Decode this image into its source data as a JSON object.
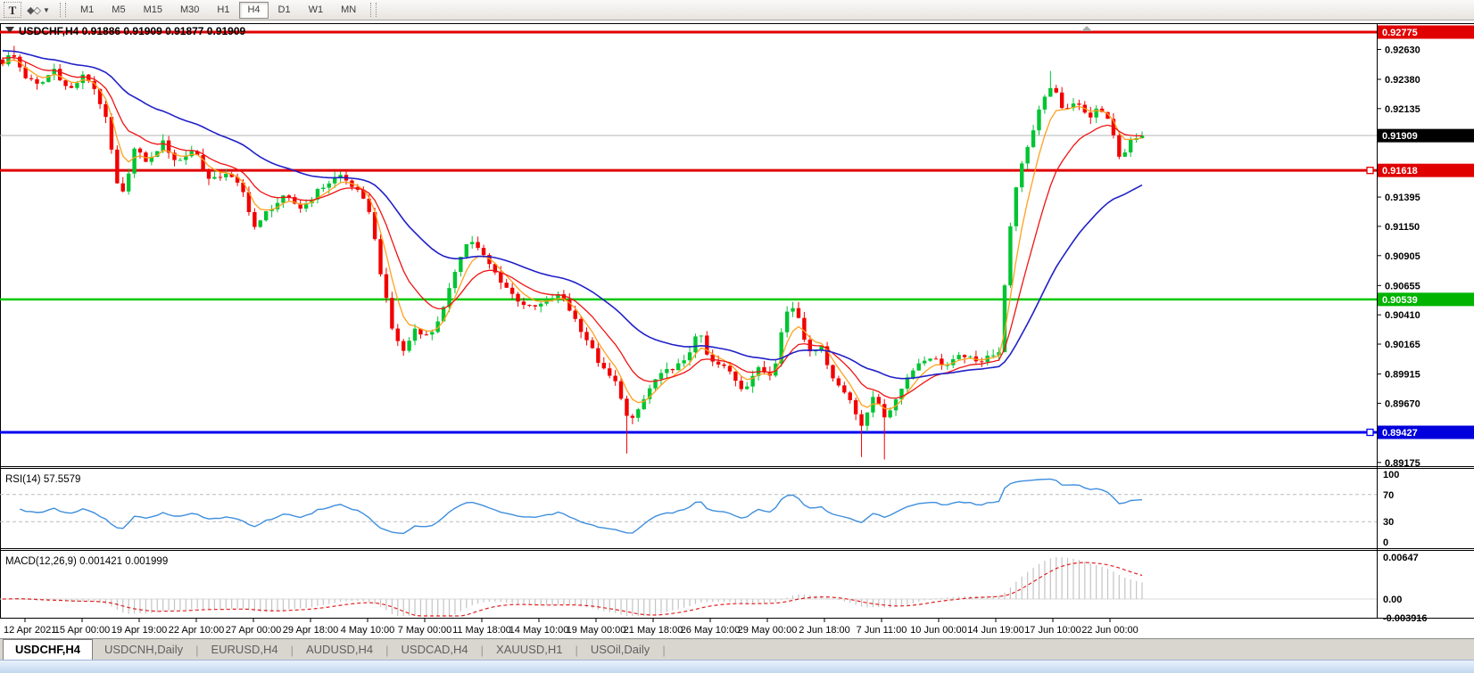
{
  "toolbar": {
    "text_tool": "T",
    "shapes_tool_glyph": "◆◇",
    "timeframes": [
      "M1",
      "M5",
      "M15",
      "M30",
      "H1",
      "H4",
      "D1",
      "W1",
      "MN"
    ],
    "active_timeframe": "H4"
  },
  "chart": {
    "title_line": "USDCHF,H4  0.91886 0.91909 0.91877 0.91909",
    "symbol": "USDCHF",
    "timeframe": "H4",
    "open": "0.91886",
    "high": "0.91909",
    "low": "0.91877",
    "close": "0.91909"
  },
  "colors": {
    "up": "#00c432",
    "down": "#f20000",
    "ma_fast": "#ffa01e",
    "ma_mid": "#f01414",
    "ma_slow": "#2020c8",
    "line_red": "#e00000",
    "line_green": "#00c800",
    "line_blue": "#0000f0",
    "current_line": "#b4b4b4",
    "rsi_line": "#3e8ede",
    "macd_hist": "#c4c4c4",
    "macd_signal": "#e02020",
    "level_dash": "#bbbbbb"
  },
  "price_axis": {
    "ticks": [
      "0.92630",
      "0.92380",
      "0.92135",
      "0.91395",
      "0.91150",
      "0.90905",
      "0.90655",
      "0.90410",
      "0.90165",
      "0.89915",
      "0.89670",
      "0.89175"
    ],
    "tags": [
      {
        "price": "0.92775",
        "bg": "#e00000",
        "fg": "#ffffff"
      },
      {
        "price": "0.91909",
        "bg": "#000000",
        "fg": "#ffffff"
      },
      {
        "price": "0.91618",
        "bg": "#e00000",
        "fg": "#ffffff"
      },
      {
        "price": "0.90539",
        "bg": "#00b400",
        "fg": "#ffffff"
      },
      {
        "price": "0.89427",
        "bg": "#0000dc",
        "fg": "#ffffff"
      }
    ]
  },
  "hlines": [
    {
      "price": 0.92775,
      "color": "#e00000",
      "width": 3,
      "anchor": false
    },
    {
      "price": 0.91618,
      "color": "#e00000",
      "width": 3,
      "anchor": true
    },
    {
      "price": 0.90539,
      "color": "#00c800",
      "width": 2.5,
      "anchor": false
    },
    {
      "price": 0.89427,
      "color": "#0000f0",
      "width": 3,
      "anchor": true
    }
  ],
  "current_price": "0.91909",
  "chart_data": {
    "type": "candlestick",
    "symbol": "USDCHF",
    "timeframe": "H4",
    "visible_time_range": [
      "12 Apr 2021",
      "23 Jun 2021"
    ],
    "price_axis_range": [
      0.89143,
      0.92842
    ],
    "close_path": [
      [
        0.0,
        0.9252
      ],
      [
        0.008,
        0.926
      ],
      [
        0.02,
        0.924
      ],
      [
        0.032,
        0.9232
      ],
      [
        0.045,
        0.9247
      ],
      [
        0.058,
        0.9228
      ],
      [
        0.072,
        0.9242
      ],
      [
        0.082,
        0.9228
      ],
      [
        0.092,
        0.92
      ],
      [
        0.1,
        0.915
      ],
      [
        0.106,
        0.9142
      ],
      [
        0.115,
        0.918
      ],
      [
        0.128,
        0.9168
      ],
      [
        0.14,
        0.9186
      ],
      [
        0.153,
        0.9168
      ],
      [
        0.168,
        0.918
      ],
      [
        0.182,
        0.9152
      ],
      [
        0.196,
        0.916
      ],
      [
        0.21,
        0.9146
      ],
      [
        0.222,
        0.9112
      ],
      [
        0.232,
        0.9128
      ],
      [
        0.248,
        0.914
      ],
      [
        0.262,
        0.913
      ],
      [
        0.278,
        0.9146
      ],
      [
        0.296,
        0.9158
      ],
      [
        0.31,
        0.9146
      ],
      [
        0.322,
        0.9128
      ],
      [
        0.332,
        0.9075
      ],
      [
        0.342,
        0.9028
      ],
      [
        0.352,
        0.901
      ],
      [
        0.362,
        0.903
      ],
      [
        0.374,
        0.9022
      ],
      [
        0.388,
        0.9048
      ],
      [
        0.4,
        0.9088
      ],
      [
        0.41,
        0.9105
      ],
      [
        0.422,
        0.909
      ],
      [
        0.435,
        0.9072
      ],
      [
        0.45,
        0.9055
      ],
      [
        0.464,
        0.9046
      ],
      [
        0.478,
        0.9052
      ],
      [
        0.49,
        0.9058
      ],
      [
        0.502,
        0.9038
      ],
      [
        0.514,
        0.9018
      ],
      [
        0.526,
        0.8996
      ],
      [
        0.54,
        0.8982
      ],
      [
        0.55,
        0.8948
      ],
      [
        0.558,
        0.8962
      ],
      [
        0.572,
        0.8986
      ],
      [
        0.586,
        0.8996
      ],
      [
        0.6,
        0.9002
      ],
      [
        0.61,
        0.903
      ],
      [
        0.62,
        0.9002
      ],
      [
        0.636,
        0.8996
      ],
      [
        0.65,
        0.8978
      ],
      [
        0.662,
        0.8996
      ],
      [
        0.676,
        0.899
      ],
      [
        0.686,
        0.9042
      ],
      [
        0.696,
        0.9048
      ],
      [
        0.706,
        0.9012
      ],
      [
        0.718,
        0.9014
      ],
      [
        0.73,
        0.8986
      ],
      [
        0.744,
        0.897
      ],
      [
        0.755,
        0.8946
      ],
      [
        0.765,
        0.8976
      ],
      [
        0.776,
        0.8952
      ],
      [
        0.786,
        0.8976
      ],
      [
        0.8,
        0.8998
      ],
      [
        0.814,
        0.9006
      ],
      [
        0.828,
        0.8998
      ],
      [
        0.843,
        0.9008
      ],
      [
        0.856,
        0.9
      ],
      [
        0.866,
        0.901
      ],
      [
        0.874,
        0.9004
      ],
      [
        0.882,
        0.9098
      ],
      [
        0.892,
        0.9162
      ],
      [
        0.902,
        0.9188
      ],
      [
        0.912,
        0.9222
      ],
      [
        0.922,
        0.9232
      ],
      [
        0.932,
        0.921
      ],
      [
        0.942,
        0.922
      ],
      [
        0.952,
        0.9206
      ],
      [
        0.962,
        0.9214
      ],
      [
        0.972,
        0.92
      ],
      [
        0.981,
        0.9168
      ],
      [
        0.99,
        0.9186
      ],
      [
        1.0,
        0.91909
      ]
    ],
    "spikes": [
      {
        "f": 0.008,
        "high": 0.9266
      },
      {
        "f": 0.55,
        "low": 0.8925
      },
      {
        "f": 0.755,
        "low": 0.8922
      },
      {
        "f": 0.776,
        "low": 0.892
      },
      {
        "f": 0.922,
        "high": 0.9245
      }
    ]
  },
  "rsi": {
    "line_text": "RSI(14) 57.5579",
    "period": 14,
    "value": "57.5579",
    "scale": [
      "100",
      "70",
      "30",
      "0"
    ],
    "levels": [
      70,
      30
    ]
  },
  "macd": {
    "line_text": "MACD(12,26,9) 0.001421 0.001999",
    "macd_value": "0.001421",
    "signal_value": "0.001999",
    "scale_max": "0.00647",
    "scale_zero": "0.00",
    "scale_min": "-0.003916"
  },
  "time_axis": [
    "12 Apr 2021",
    "15 Apr 00:00",
    "19 Apr 19:00",
    "22 Apr 10:00",
    "27 Apr 00:00",
    "29 Apr 18:00",
    "4 May 10:00",
    "7 May 00:00",
    "11 May 18:00",
    "14 May 10:00",
    "19 May 00:00",
    "21 May 18:00",
    "26 May 10:00",
    "29 May 00:00",
    "2 Jun 18:00",
    "7 Jun 11:00",
    "10 Jun 00:00",
    "14 Jun 19:00",
    "17 Jun 10:00",
    "22 Jun 00:00"
  ],
  "tabs": [
    {
      "label": "USDCHF,H4",
      "active": true
    },
    {
      "label": "USDCNH,Daily",
      "active": false
    },
    {
      "label": "EURUSD,H4",
      "active": false
    },
    {
      "label": "AUDUSD,H4",
      "active": false
    },
    {
      "label": "USDCAD,H4",
      "active": false
    },
    {
      "label": "XAUUSD,H1",
      "active": false
    },
    {
      "label": "USOil,Daily",
      "active": false
    }
  ]
}
